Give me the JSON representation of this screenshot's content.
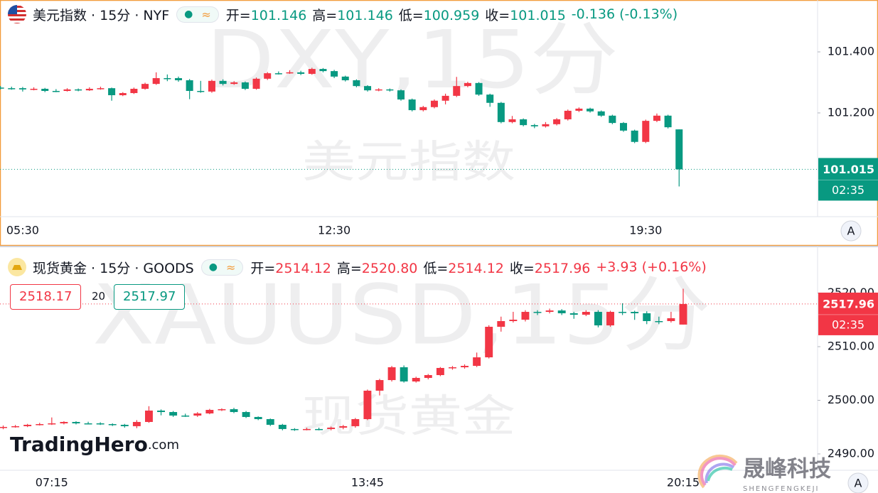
{
  "chart_data": [
    {
      "type": "candlestick",
      "title": "美元指数 · 15分 · NYF",
      "fields": [
        {
          "label": "开=",
          "value": "101.146"
        },
        {
          "label": "高=",
          "value": "101.146"
        },
        {
          "label": "低=",
          "value": "100.959"
        },
        {
          "label": "收=",
          "value": "101.015"
        }
      ],
      "change": "-0.136 (-0.13%)",
      "watermark": "DXY,15分",
      "watermark_sub": "美元指数",
      "up_color": "#f23645",
      "down_color": "#089981",
      "ylim": [
        100.86,
        101.57
      ],
      "yticks": [
        {
          "value": 101.4,
          "label": "101.400"
        },
        {
          "value": 101.2,
          "label": "101.200"
        }
      ],
      "countdown": "02:35",
      "axis_button": "A",
      "categories": [
        null,
        null,
        "05:30",
        null,
        null,
        null,
        null,
        null,
        null,
        null,
        null,
        null,
        null,
        null,
        null,
        null,
        null,
        null,
        null,
        null,
        null,
        null,
        null,
        null,
        null,
        null,
        null,
        null,
        null,
        null,
        "12:30",
        null,
        null,
        null,
        null,
        null,
        null,
        null,
        null,
        null,
        null,
        null,
        null,
        null,
        null,
        null,
        null,
        null,
        null,
        null,
        null,
        null,
        null,
        null,
        null,
        null,
        null,
        null,
        "19:30",
        null,
        null,
        null
      ],
      "ohlc": [
        [
          101.283,
          101.288,
          101.277,
          101.281
        ],
        [
          101.281,
          101.286,
          101.276,
          101.281
        ],
        [
          101.281,
          101.285,
          101.27,
          101.277
        ],
        [
          101.277,
          101.284,
          101.274,
          101.279
        ],
        [
          101.279,
          101.282,
          101.268,
          101.272
        ],
        [
          101.272,
          101.278,
          101.268,
          101.272
        ],
        [
          101.272,
          101.281,
          101.27,
          101.277
        ],
        [
          101.277,
          101.28,
          101.271,
          101.274
        ],
        [
          101.274,
          101.284,
          101.272,
          101.279
        ],
        [
          101.279,
          101.286,
          101.276,
          101.281
        ],
        [
          101.281,
          101.283,
          101.24,
          101.258
        ],
        [
          101.258,
          101.268,
          101.255,
          101.265
        ],
        [
          101.265,
          101.283,
          101.262,
          101.279
        ],
        [
          101.279,
          101.299,
          101.276,
          101.295
        ],
        [
          101.295,
          101.333,
          101.292,
          101.314
        ],
        [
          101.314,
          101.326,
          101.304,
          101.314
        ],
        [
          101.314,
          101.319,
          101.302,
          101.307
        ],
        [
          101.307,
          101.311,
          101.245,
          101.272
        ],
        [
          101.272,
          101.305,
          101.266,
          101.27
        ],
        [
          101.27,
          101.309,
          101.266,
          101.305
        ],
        [
          101.305,
          101.31,
          101.29,
          101.295
        ],
        [
          101.295,
          101.304,
          101.292,
          101.3
        ],
        [
          101.3,
          101.303,
          101.275,
          101.279
        ],
        [
          101.279,
          101.316,
          101.276,
          101.312
        ],
        [
          101.312,
          101.334,
          101.308,
          101.33
        ],
        [
          101.33,
          101.336,
          101.326,
          101.33
        ],
        [
          101.33,
          101.34,
          101.328,
          101.333
        ],
        [
          101.333,
          101.338,
          101.324,
          101.328
        ],
        [
          101.328,
          101.348,
          101.325,
          101.344
        ],
        [
          101.344,
          101.347,
          101.333,
          101.337
        ],
        [
          101.337,
          101.341,
          101.314,
          101.319
        ],
        [
          101.319,
          101.322,
          101.303,
          101.307
        ],
        [
          101.307,
          101.31,
          101.284,
          101.288
        ],
        [
          101.288,
          101.291,
          101.27,
          101.274
        ],
        [
          101.274,
          101.281,
          101.271,
          101.277
        ],
        [
          101.277,
          101.28,
          101.27,
          101.274
        ],
        [
          101.274,
          101.277,
          101.24,
          101.244
        ],
        [
          101.244,
          101.247,
          101.205,
          101.209
        ],
        [
          101.209,
          101.223,
          101.205,
          101.219
        ],
        [
          101.219,
          101.244,
          101.215,
          101.24
        ],
        [
          101.24,
          101.263,
          101.228,
          101.256
        ],
        [
          101.256,
          101.318,
          101.252,
          101.288
        ],
        [
          101.288,
          101.302,
          101.284,
          101.298
        ],
        [
          101.298,
          101.301,
          101.256,
          101.26
        ],
        [
          101.26,
          101.263,
          101.22,
          101.233
        ],
        [
          101.233,
          101.236,
          101.166,
          101.17
        ],
        [
          101.17,
          101.19,
          101.166,
          101.179
        ],
        [
          101.179,
          101.182,
          101.156,
          101.16
        ],
        [
          101.16,
          101.164,
          101.15,
          101.156
        ],
        [
          101.156,
          101.17,
          101.152,
          101.163
        ],
        [
          101.163,
          101.183,
          101.159,
          101.179
        ],
        [
          101.179,
          101.211,
          101.175,
          101.207
        ],
        [
          101.207,
          101.218,
          101.203,
          101.214
        ],
        [
          101.214,
          101.217,
          101.201,
          101.205
        ],
        [
          101.205,
          101.208,
          101.187,
          101.191
        ],
        [
          101.191,
          101.194,
          101.163,
          101.167
        ],
        [
          101.167,
          101.17,
          101.138,
          101.142
        ],
        [
          101.142,
          101.145,
          101.101,
          101.105
        ],
        [
          101.105,
          101.178,
          101.101,
          101.174
        ],
        [
          101.174,
          101.198,
          101.17,
          101.191
        ],
        [
          101.191,
          101.194,
          101.149,
          101.153
        ],
        [
          101.146,
          101.146,
          100.959,
          101.015
        ]
      ]
    },
    {
      "type": "candlestick",
      "title": "现货黄金 · 15分 · GOODS",
      "fields": [
        {
          "label": "开=",
          "value": "2514.12"
        },
        {
          "label": "高=",
          "value": "2520.80"
        },
        {
          "label": "低=",
          "value": "2514.12"
        },
        {
          "label": "收=",
          "value": "2517.96"
        }
      ],
      "change": "+3.93 (+0.16%)",
      "watermark": "XAUUSD,15分",
      "watermark_sub": "现货黄金",
      "quotes": [
        "2518.17",
        "20",
        "2517.97"
      ],
      "up_color": "#f23645",
      "down_color": "#089981",
      "ylim": [
        2486.95,
        2528.68
      ],
      "yticks": [
        {
          "value": 2520,
          "label": "2520.00"
        },
        {
          "value": 2510,
          "label": "2510.00"
        },
        {
          "value": 2500,
          "label": "2500.00"
        },
        {
          "value": 2490,
          "label": "2490.00"
        }
      ],
      "countdown": "02:35",
      "axis_button": "A",
      "categories": [
        null,
        null,
        null,
        null,
        "07:15",
        null,
        null,
        null,
        null,
        null,
        null,
        null,
        null,
        null,
        null,
        null,
        null,
        null,
        null,
        null,
        null,
        null,
        null,
        null,
        null,
        null,
        null,
        null,
        null,
        null,
        "13:45",
        null,
        null,
        null,
        null,
        null,
        null,
        null,
        null,
        null,
        null,
        null,
        null,
        null,
        null,
        null,
        null,
        null,
        null,
        null,
        null,
        null,
        null,
        null,
        null,
        null,
        "20:15"
      ],
      "ohlc": [
        [
          2494.9,
          2495.3,
          2494.6,
          2495.03
        ],
        [
          2495.03,
          2495.4,
          2494.9,
          2495.17
        ],
        [
          2495.17,
          2495.6,
          2495.0,
          2495.43
        ],
        [
          2495.43,
          2495.8,
          2495.3,
          2495.56
        ],
        [
          2495.56,
          2496.8,
          2495.4,
          2495.7
        ],
        [
          2495.7,
          2496.1,
          2495.5,
          2495.96
        ],
        [
          2495.96,
          2496.1,
          2495.5,
          2495.7
        ],
        [
          2495.7,
          2496.0,
          2495.5,
          2495.7
        ],
        [
          2495.7,
          2495.9,
          2495.4,
          2495.56
        ],
        [
          2495.56,
          2495.7,
          2495.2,
          2495.43
        ],
        [
          2495.43,
          2495.6,
          2494.9,
          2495.17
        ],
        [
          2495.17,
          2496.3,
          2494.8,
          2495.96
        ],
        [
          2495.96,
          2498.9,
          2495.8,
          2498.08
        ],
        [
          2498.08,
          2498.3,
          2497.2,
          2497.81
        ],
        [
          2497.81,
          2498.0,
          2496.9,
          2497.15
        ],
        [
          2497.15,
          2497.5,
          2496.9,
          2497.15
        ],
        [
          2497.15,
          2497.8,
          2496.9,
          2497.55
        ],
        [
          2497.55,
          2498.4,
          2497.4,
          2498.21
        ],
        [
          2498.21,
          2498.5,
          2498.0,
          2498.34
        ],
        [
          2498.34,
          2498.6,
          2497.6,
          2497.81
        ],
        [
          2497.81,
          2498.0,
          2496.7,
          2496.89
        ],
        [
          2496.89,
          2497.0,
          2496.3,
          2496.49
        ],
        [
          2496.49,
          2496.6,
          2495.2,
          2495.43
        ],
        [
          2495.43,
          2495.6,
          2494.4,
          2494.64
        ],
        [
          2494.64,
          2494.8,
          2494.3,
          2494.5
        ],
        [
          2494.5,
          2494.9,
          2494.4,
          2494.64
        ],
        [
          2494.64,
          2494.9,
          2494.4,
          2494.64
        ],
        [
          2494.64,
          2495.1,
          2494.4,
          2494.9
        ],
        [
          2494.9,
          2495.4,
          2494.6,
          2495.17
        ],
        [
          2495.17,
          2496.7,
          2494.9,
          2496.49
        ],
        [
          2496.49,
          2502.0,
          2496.3,
          2501.79
        ],
        [
          2501.79,
          2504.0,
          2500.9,
          2503.77
        ],
        [
          2503.77,
          2506.4,
          2503.5,
          2506.16
        ],
        [
          2506.16,
          2506.5,
          2503.3,
          2503.51
        ],
        [
          2503.51,
          2504.4,
          2503.3,
          2504.17
        ],
        [
          2504.17,
          2504.9,
          2503.9,
          2504.7
        ],
        [
          2504.7,
          2506.2,
          2504.5,
          2506.03
        ],
        [
          2506.03,
          2506.4,
          2505.7,
          2506.16
        ],
        [
          2506.16,
          2506.7,
          2505.9,
          2506.42
        ],
        [
          2506.42,
          2508.9,
          2506.2,
          2508.01
        ],
        [
          2508.01,
          2514.0,
          2507.8,
          2513.71
        ],
        [
          2513.71,
          2515.6,
          2512.8,
          2514.77
        ],
        [
          2514.77,
          2516.5,
          2514.5,
          2515.03
        ],
        [
          2515.03,
          2516.8,
          2514.7,
          2516.49
        ],
        [
          2516.49,
          2516.8,
          2515.9,
          2516.49
        ],
        [
          2516.49,
          2517.1,
          2516.2,
          2516.75
        ],
        [
          2516.75,
          2517.0,
          2515.9,
          2516.23
        ],
        [
          2516.23,
          2516.5,
          2515.2,
          2515.96
        ],
        [
          2515.96,
          2516.8,
          2515.7,
          2516.49
        ],
        [
          2516.49,
          2516.8,
          2513.6,
          2513.97
        ],
        [
          2513.97,
          2516.7,
          2513.7,
          2516.49
        ],
        [
          2516.49,
          2518.1,
          2515.9,
          2516.49
        ],
        [
          2516.49,
          2516.7,
          2515.0,
          2516.23
        ],
        [
          2516.23,
          2516.6,
          2514.2,
          2514.77
        ],
        [
          2514.77,
          2515.6,
          2514.2,
          2514.77
        ],
        [
          2514.77,
          2516.5,
          2514.5,
          2515.3
        ],
        [
          2514.12,
          2520.8,
          2514.12,
          2517.96
        ]
      ]
    }
  ],
  "branding": {
    "logo_main": "TradingHero",
    "logo_suffix": ".com",
    "corner_logo": "晟峰科技",
    "corner_logo_sub": "SHENGFENGKEJI"
  }
}
